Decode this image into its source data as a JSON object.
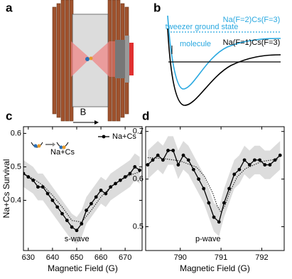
{
  "panels": {
    "a": "a",
    "b": "b"
  },
  "diagram_a": {
    "field_label": "B"
  },
  "diagram_b": {
    "upper_state": "Na(F=2)Cs(F=3)",
    "lower_state": "Na(F=1)Cs(F=3)",
    "tweezer_label": "tweezer ground state",
    "molecule_label": "molecule"
  },
  "chart_data": [
    {
      "type": "line",
      "panel": "c",
      "xlabel": "Magnetic Field (G)",
      "ylabel": "Na+Cs Survival",
      "annotation": "s-wave",
      "inset_label": "Na+Cs",
      "x": [
        628,
        630,
        632,
        634,
        636,
        638,
        640,
        642,
        644,
        646,
        648,
        650,
        652,
        654,
        656,
        658,
        660,
        662,
        664,
        666,
        668,
        670,
        672,
        674,
        676
      ],
      "series": [
        {
          "name": "Na+Cs",
          "color": "#000000",
          "values": [
            0.48,
            0.47,
            0.46,
            0.44,
            0.44,
            0.42,
            0.4,
            0.38,
            0.36,
            0.34,
            0.32,
            0.31,
            0.33,
            0.37,
            0.39,
            0.41,
            0.43,
            0.42,
            0.44,
            0.45,
            0.46,
            0.47,
            0.48,
            0.5,
            0.49
          ],
          "errors": [
            0.04,
            0.04,
            0.04,
            0.04,
            0.04,
            0.04,
            0.04,
            0.04,
            0.04,
            0.04,
            0.04,
            0.04,
            0.04,
            0.04,
            0.04,
            0.04,
            0.04,
            0.04,
            0.04,
            0.04,
            0.04,
            0.04,
            0.04,
            0.04,
            0.04
          ]
        }
      ],
      "fit": {
        "x": [
          628,
          632,
          636,
          640,
          644,
          648,
          652,
          656,
          660,
          664,
          668,
          672,
          676
        ],
        "values": [
          0.48,
          0.465,
          0.445,
          0.415,
          0.38,
          0.34,
          0.335,
          0.37,
          0.41,
          0.44,
          0.46,
          0.475,
          0.485
        ]
      },
      "xlim": [
        628,
        677
      ],
      "ylim": [
        0.25,
        0.62
      ],
      "xticks": [
        630,
        640,
        650,
        660,
        670
      ],
      "yticks": [
        0.4,
        0.5,
        0.6
      ],
      "legend": "upper right",
      "band_color": "#dcdcdc"
    },
    {
      "type": "line",
      "panel": "d",
      "xlabel": "Magnetic Field (G)",
      "annotation": "p-wave",
      "x": [
        789.2,
        789.325,
        789.45,
        789.575,
        789.7,
        789.825,
        789.95,
        790.075,
        790.2,
        790.325,
        790.45,
        790.575,
        790.7,
        790.825,
        790.95,
        791.075,
        791.2,
        791.325,
        791.45,
        791.575,
        791.7,
        791.825,
        791.95,
        792.075,
        792.2,
        792.325,
        792.45
      ],
      "series": [
        {
          "name": null,
          "color": "#000000",
          "values": [
            0.63,
            0.64,
            0.65,
            0.64,
            0.66,
            0.66,
            0.63,
            0.65,
            0.64,
            0.62,
            0.6,
            0.58,
            0.55,
            0.52,
            0.51,
            0.55,
            0.58,
            0.61,
            0.62,
            0.64,
            0.63,
            0.64,
            0.64,
            0.63,
            0.63,
            0.64,
            0.65
          ],
          "errors": [
            0.03,
            0.03,
            0.03,
            0.03,
            0.03,
            0.03,
            0.03,
            0.03,
            0.03,
            0.03,
            0.03,
            0.03,
            0.03,
            0.03,
            0.03,
            0.03,
            0.03,
            0.03,
            0.03,
            0.03,
            0.03,
            0.03,
            0.03,
            0.03,
            0.03,
            0.03,
            0.03
          ]
        }
      ],
      "fit": {
        "x": [
          789.2,
          789.6,
          790.0,
          790.4,
          790.6,
          790.8,
          790.9,
          791.0,
          791.1,
          791.2,
          791.4,
          791.6,
          792.0,
          792.4
        ],
        "values": [
          0.645,
          0.643,
          0.638,
          0.625,
          0.605,
          0.57,
          0.545,
          0.53,
          0.545,
          0.57,
          0.605,
          0.622,
          0.637,
          0.642
        ]
      },
      "xlim": [
        789.15,
        792.55
      ],
      "ylim": [
        0.45,
        0.71
      ],
      "xticks": [
        790,
        791,
        792
      ],
      "yticks": [
        0.5,
        0.6,
        0.7
      ],
      "band_color": "#dcdcdc"
    }
  ]
}
